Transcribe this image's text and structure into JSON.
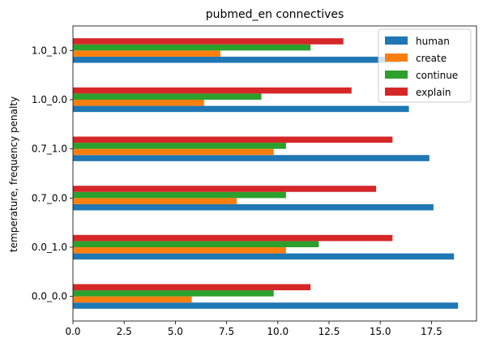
{
  "chart_data": {
    "type": "bar",
    "orientation": "horizontal",
    "title": "pubmed_en connectives",
    "xlabel": "",
    "ylabel": "temperature, frequency penalty",
    "xlim": [
      0,
      19.7
    ],
    "xticks": [
      "0.0",
      "2.5",
      "5.0",
      "7.5",
      "10.0",
      "12.5",
      "15.0",
      "17.5"
    ],
    "grid": false,
    "legend_position": "top-right",
    "categories": [
      "0.0_0.0",
      "0.0_1.0",
      "0.7_0.0",
      "0.7_1.0",
      "1.0_0.0",
      "1.0_1.0"
    ],
    "series": [
      {
        "name": "human",
        "color": "#1f77b4",
        "values": [
          18.8,
          18.6,
          17.6,
          17.4,
          16.4,
          16.0
        ]
      },
      {
        "name": "create",
        "color": "#ff7f0e",
        "values": [
          5.8,
          10.4,
          8.0,
          9.8,
          6.4,
          7.2
        ]
      },
      {
        "name": "continue",
        "color": "#2ca02c",
        "values": [
          9.8,
          12.0,
          10.4,
          10.4,
          9.2,
          11.6
        ]
      },
      {
        "name": "explain",
        "color": "#d62728",
        "values": [
          11.6,
          15.6,
          14.8,
          15.6,
          13.6,
          13.2
        ]
      }
    ]
  }
}
